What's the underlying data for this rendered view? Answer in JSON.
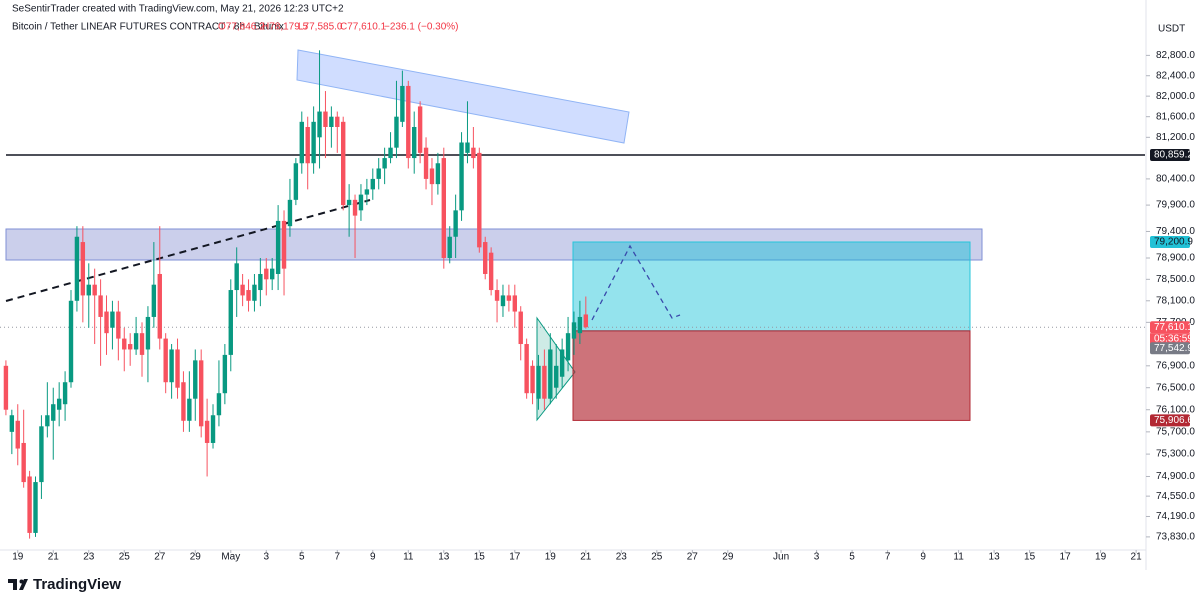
{
  "header": {
    "credit": "SeSentirTrader created with TradingView.com, May 21, 2026 12:23 UTC+2",
    "symbol": "Bitcoin / Tether LINEAR FUTURES CONTRACT · 8h · Bitunix",
    "ohlc": [
      "O77,846.2",
      "H78,179.5",
      "L77,585.0",
      "C77,610.1",
      "−236.1 (−0.30%)"
    ]
  },
  "footer": {
    "logo": "TradingView"
  },
  "chart_data": {
    "type": "candlestick",
    "currency": "USDT",
    "log_scale": true,
    "grid": false,
    "up_color": "#089981",
    "down_color": "#f7525f",
    "open": [
      76900,
      75700,
      75900,
      75500,
      74900,
      73900,
      74800,
      75800,
      75900,
      76100,
      76200,
      76600,
      78100,
      79200,
      78200,
      78400,
      78200,
      77900,
      77600,
      77900,
      77400,
      77300,
      77200,
      77500,
      77200,
      77800,
      78600,
      77400,
      76600,
      77200,
      76600,
      75900,
      76300,
      77000,
      75900,
      75500,
      76000,
      76400,
      77100,
      78300,
      78400,
      78300,
      78100,
      78300,
      78700,
      78500,
      78600,
      79600,
      79500,
      80000,
      80700,
      81400,
      80700,
      81200,
      81700,
      81400,
      81600,
      81500,
      79900,
      80000,
      79800,
      80100,
      80200,
      80400,
      80600,
      80800,
      81000,
      81500,
      82200,
      80800,
      81800,
      81000,
      80600,
      80300,
      80800,
      78900,
      79300,
      79800,
      80900,
      81000,
      80900,
      79200,
      79000,
      78300,
      78000,
      78200,
      78200,
      77900,
      77300,
      76900,
      76300,
      76900,
      76300,
      76500,
      76700,
      77000,
      77400,
      77500,
      77846.2
    ],
    "high": [
      77000,
      76100,
      76200,
      76100,
      75000,
      74900,
      76000,
      76600,
      76500,
      76600,
      76800,
      78300,
      79500,
      79500,
      78800,
      78700,
      78500,
      78200,
      78100,
      78100,
      77600,
      77500,
      77800,
      77700,
      78000,
      79200,
      79500,
      77500,
      77300,
      77400,
      76800,
      76800,
      77200,
      77200,
      76300,
      76200,
      77000,
      77300,
      78500,
      79100,
      78600,
      78500,
      78600,
      78900,
      78900,
      78900,
      79900,
      79800,
      80400,
      80800,
      81700,
      81600,
      81800,
      82900,
      82100,
      81800,
      81700,
      81600,
      80300,
      80100,
      80300,
      80400,
      80600,
      80800,
      81000,
      81300,
      82300,
      82500,
      82300,
      81700,
      81900,
      81200,
      80800,
      80900,
      81000,
      79500,
      80100,
      81300,
      81900,
      81400,
      81000,
      79300,
      79100,
      78500,
      78400,
      78400,
      78400,
      78000,
      77400,
      77000,
      77100,
      77200,
      77500,
      77300,
      77400,
      77800,
      77900,
      78100,
      78179.5
    ],
    "low": [
      76000,
      75300,
      75100,
      74700,
      73800,
      73830,
      74500,
      75600,
      75200,
      75800,
      75900,
      76500,
      77900,
      77700,
      77600,
      77300,
      76900,
      77100,
      77200,
      77000,
      76800,
      76900,
      77100,
      76700,
      76600,
      77600,
      77200,
      76400,
      76300,
      76300,
      75700,
      75700,
      75900,
      75600,
      74900,
      75400,
      75800,
      76200,
      76800,
      77800,
      78000,
      77900,
      77900,
      78000,
      78200,
      78300,
      78300,
      78200,
      79300,
      79900,
      80500,
      80200,
      80500,
      80600,
      80800,
      81000,
      80900,
      79800,
      79300,
      78900,
      79600,
      79900,
      80000,
      80200,
      80300,
      80700,
      80800,
      81400,
      80600,
      80500,
      80700,
      80200,
      79900,
      80100,
      78700,
      78800,
      78900,
      79600,
      80700,
      80600,
      79000,
      78500,
      78200,
      77700,
      77800,
      77900,
      77600,
      77000,
      76300,
      76200,
      76100,
      76100,
      76200,
      76300,
      76500,
      76800,
      77100,
      77300,
      77585.0
    ],
    "close": [
      76100,
      76000,
      75400,
      74800,
      73900,
      74800,
      75800,
      76000,
      76200,
      76300,
      76600,
      78100,
      79300,
      78200,
      78400,
      78200,
      77800,
      77500,
      77900,
      77400,
      77200,
      77200,
      77500,
      77100,
      77800,
      78400,
      77400,
      76600,
      77200,
      76500,
      75900,
      76300,
      77000,
      75800,
      75500,
      76000,
      76400,
      77100,
      78300,
      78800,
      78200,
      78100,
      78400,
      78600,
      78500,
      78700,
      79600,
      78700,
      80000,
      80700,
      81500,
      80700,
      81500,
      81700,
      81400,
      81600,
      81400,
      79900,
      80000,
      79700,
      80100,
      80200,
      80400,
      80600,
      80800,
      81000,
      81600,
      82200,
      80800,
      81400,
      80900,
      80400,
      80300,
      80700,
      78900,
      79300,
      79800,
      81100,
      81100,
      80800,
      79100,
      78600,
      78300,
      78100,
      78200,
      78100,
      77900,
      77300,
      76400,
      76400,
      76900,
      76300,
      77200,
      76900,
      77200,
      77500,
      77700,
      77800,
      77610.1
    ],
    "xlim": [
      -1,
      192.5
    ],
    "xticks": [
      {
        "value": 2,
        "label": "19"
      },
      {
        "value": 8,
        "label": "21"
      },
      {
        "value": 14,
        "label": "23"
      },
      {
        "value": 20,
        "label": "25"
      },
      {
        "value": 26,
        "label": "27"
      },
      {
        "value": 32,
        "label": "29"
      },
      {
        "value": 38,
        "label": "May"
      },
      {
        "value": 44,
        "label": "3"
      },
      {
        "value": 50,
        "label": "5"
      },
      {
        "value": 56,
        "label": "7"
      },
      {
        "value": 62,
        "label": "9"
      },
      {
        "value": 68,
        "label": "11"
      },
      {
        "value": 74,
        "label": "13"
      },
      {
        "value": 80,
        "label": "15"
      },
      {
        "value": 86,
        "label": "17"
      },
      {
        "value": 92,
        "label": "19"
      },
      {
        "value": 98,
        "label": "21"
      },
      {
        "value": 104,
        "label": "23"
      },
      {
        "value": 110,
        "label": "25"
      },
      {
        "value": 116,
        "label": "27"
      },
      {
        "value": 122,
        "label": "29"
      },
      {
        "value": 131,
        "label": "Jun"
      },
      {
        "value": 137,
        "label": "3"
      },
      {
        "value": 143,
        "label": "5"
      },
      {
        "value": 149,
        "label": "7"
      },
      {
        "value": 155,
        "label": "9"
      },
      {
        "value": 161,
        "label": "11"
      },
      {
        "value": 167,
        "label": "13"
      },
      {
        "value": 173,
        "label": "15"
      },
      {
        "value": 179,
        "label": "17"
      },
      {
        "value": 185,
        "label": "19"
      },
      {
        "value": 191,
        "label": "21"
      }
    ],
    "ylim": [
      73600,
      83600
    ],
    "yticks": [
      {
        "value": 82800,
        "label": "82,800.0"
      },
      {
        "value": 82400,
        "label": "82,400.0"
      },
      {
        "value": 82000,
        "label": "82,000.0"
      },
      {
        "value": 81600,
        "label": "81,600.0"
      },
      {
        "value": 81200,
        "label": "81,200.0"
      },
      {
        "value": 80400,
        "label": "80,400.0"
      },
      {
        "value": 79900,
        "label": "79,900.0"
      },
      {
        "value": 79400,
        "label": "79,400.0"
      },
      {
        "value": 78900,
        "label": "78,900.0"
      },
      {
        "value": 78500,
        "label": "78,500.0"
      },
      {
        "value": 78100,
        "label": "78,100.0"
      },
      {
        "value": 77700,
        "label": "77,700.0"
      },
      {
        "value": 76900,
        "label": "76,900.0"
      },
      {
        "value": 76500,
        "label": "76,500.0"
      },
      {
        "value": 76100,
        "label": "76,100.0"
      },
      {
        "value": 75700,
        "label": "75,700.0"
      },
      {
        "value": 75300,
        "label": "75,300.0"
      },
      {
        "value": 74900,
        "label": "74,900.0"
      },
      {
        "value": 74550,
        "label": "74,550.0"
      },
      {
        "value": 74190,
        "label": "74,190.0"
      },
      {
        "value": 73830,
        "label": "73,830.0"
      }
    ],
    "price_labels": [
      {
        "value": 80859.2,
        "label": "80,859.2",
        "color": "#131722"
      },
      {
        "value": 79200.9,
        "label": "79,200.9",
        "color": "#22c1d6"
      },
      {
        "value": 77610.1,
        "label": "77,610.1",
        "color": "#f7525f"
      },
      {
        "value": 77542.9,
        "label": "77,542.9",
        "color": "#787b86"
      },
      {
        "value": 75906.6,
        "label": "75,906.6",
        "color": "#b22833"
      }
    ],
    "countdown": "05:36:59"
  }
}
